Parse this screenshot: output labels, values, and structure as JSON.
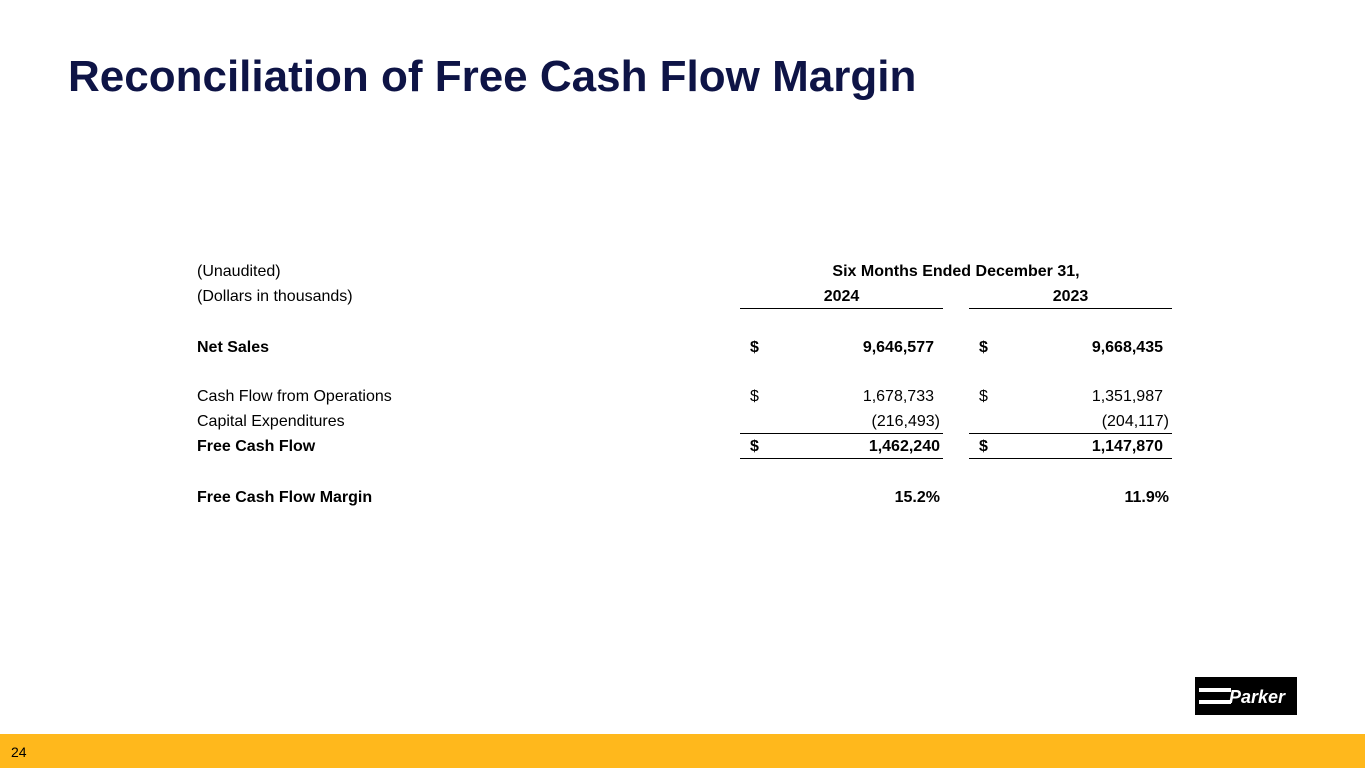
{
  "slide": {
    "title": "Reconciliation of Free Cash Flow Margin",
    "page_number": "24"
  },
  "table": {
    "note_unaudited": "(Unaudited)",
    "note_units": "(Dollars in thousands)",
    "period_header": "Six Months Ended December 31,",
    "years": [
      "2024",
      "2023"
    ],
    "currency_symbol": "$",
    "rows": [
      {
        "label": "Net Sales",
        "values": [
          "9,646,577",
          "9,668,435"
        ]
      },
      {
        "label": "Cash Flow from Operations",
        "values": [
          "1,678,733",
          "1,351,987"
        ]
      },
      {
        "label": "Capital Expenditures",
        "values": [
          "(216,493)",
          "(204,117)"
        ]
      },
      {
        "label": "Free Cash Flow",
        "values": [
          "1,462,240",
          "1,147,870"
        ]
      },
      {
        "label": "Free Cash Flow Margin",
        "values": [
          "15.2%",
          "11.9%"
        ]
      }
    ]
  },
  "logo": {
    "text": "Parker",
    "icon": "parker-logo"
  },
  "colors": {
    "title": "#0e1446",
    "footer_bar": "#ffb81c",
    "logo_bg": "#000000"
  }
}
